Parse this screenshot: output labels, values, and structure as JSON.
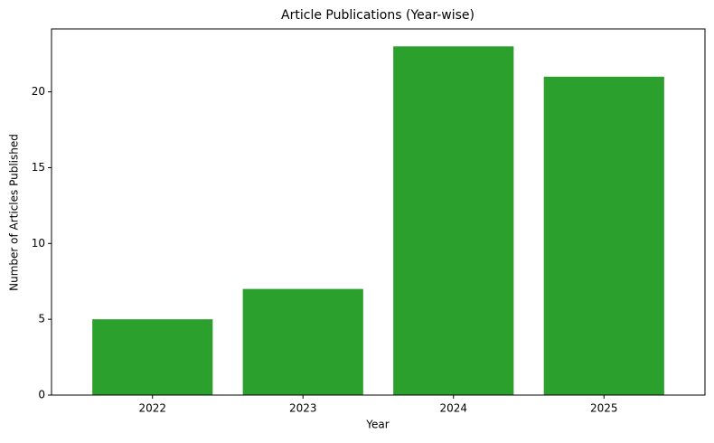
{
  "chart_data": {
    "type": "bar",
    "title": "Article Publications (Year-wise)",
    "x_label": "Year",
    "y_label": "Number of Articles Published",
    "categories": [
      "2022",
      "2023",
      "2024",
      "2025"
    ],
    "values": [
      5,
      7,
      23,
      21
    ],
    "color": "#2ca02c",
    "ylim": [
      0,
      24.15
    ],
    "yticks": [
      0,
      5,
      10,
      15,
      20
    ],
    "grid": false
  }
}
